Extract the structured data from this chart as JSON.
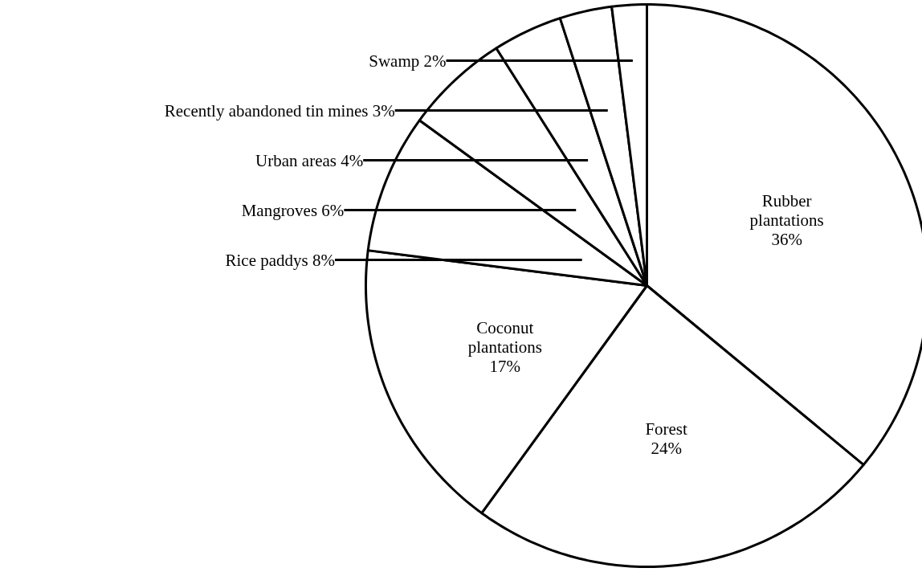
{
  "chart_data": {
    "type": "pie",
    "categories": [
      "Rubber plantations",
      "Forest",
      "Coconut plantations",
      "Rice paddys",
      "Mangroves",
      "Urban areas",
      "Recently abandoned tin mines",
      "Swamp"
    ],
    "values": [
      36,
      24,
      17,
      8,
      6,
      4,
      3,
      2
    ],
    "value_labels": [
      "36%",
      "24%",
      "17%",
      "8%",
      "6%",
      "4%",
      "3%",
      "2%"
    ],
    "colors": [
      "#ffffff",
      "#ffffff",
      "#ffffff",
      "#ffffff",
      "#ffffff",
      "#ffffff",
      "#ffffff",
      "#ffffff"
    ]
  }
}
